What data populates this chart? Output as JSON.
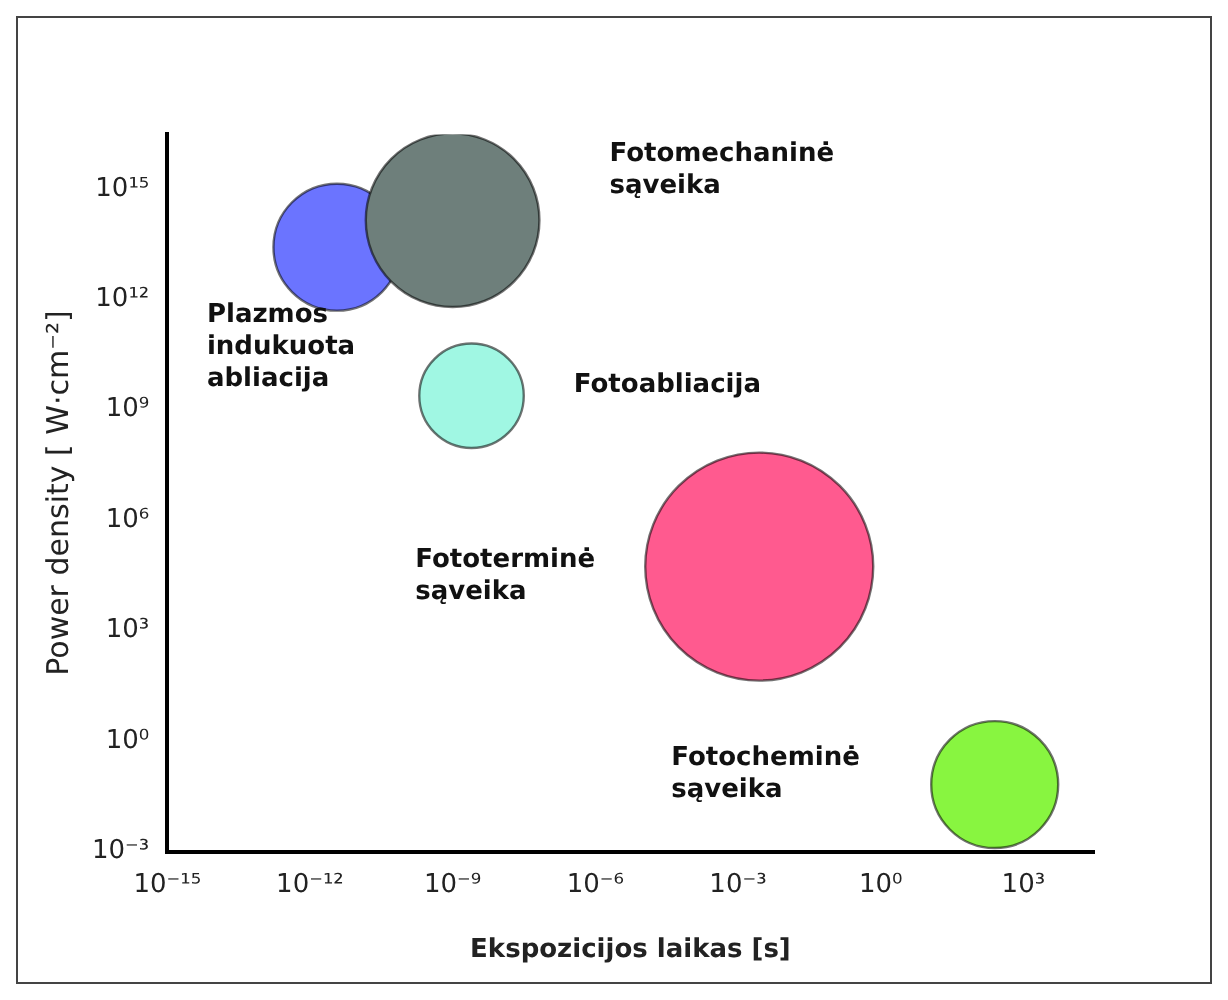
{
  "chart_data": {
    "type": "bubble",
    "xlabel": "Ekspozicijos laikas [s]",
    "ylabel": "Power density [ W·cm⁻²]",
    "log": "xy",
    "grid": false,
    "legend": false,
    "xlim": [
      1e-15,
      30000.0
    ],
    "ylim": [
      0.001,
      3e+16
    ],
    "xticks": [
      {
        "value": 1e-15,
        "label": "10⁻¹⁵"
      },
      {
        "value": 1e-12,
        "label": "10⁻¹²"
      },
      {
        "value": 1e-09,
        "label": "10⁻⁹"
      },
      {
        "value": 1e-06,
        "label": "10⁻⁶"
      },
      {
        "value": 0.001,
        "label": "10⁻³"
      },
      {
        "value": 1,
        "label": "10⁰"
      },
      {
        "value": 1000,
        "label": "10³"
      }
    ],
    "yticks": [
      {
        "value": 0.001,
        "label": "10⁻³"
      },
      {
        "value": 1,
        "label": "10⁰"
      },
      {
        "value": 1000,
        "label": "10³"
      },
      {
        "value": 1000000.0,
        "label": "10⁶"
      },
      {
        "value": 1000000000.0,
        "label": "10⁹"
      },
      {
        "value": 1000000000000.0,
        "label": "10¹²"
      },
      {
        "value": 1000000000000000.0,
        "label": "10¹⁵"
      }
    ],
    "series": [
      {
        "name": "Fotomechaninė sąveika",
        "color": "#6e7f7b",
        "x": [
          1e-09
        ],
        "values": [
          140000000000000.0
        ],
        "sizes": [
          0.58
        ]
      },
      {
        "name": "Plazmos indukuota abliacija",
        "color": "#6b74ff",
        "x": [
          3.7e-12
        ],
        "values": [
          26000000000000.0
        ],
        "sizes": [
          0.31
        ]
      },
      {
        "name": "Fotoabliacija",
        "color": "#a0f7e3",
        "x": [
          2.5e-09
        ],
        "values": [
          2400000000.0
        ],
        "sizes": [
          0.21
        ]
      },
      {
        "name": "Fototerminė sąveika",
        "color": "#ff5a8f",
        "x": [
          0.0028
        ],
        "values": [
          55000.0
        ],
        "sizes": [
          1
        ]
      },
      {
        "name": "Fotocheminė sąveika",
        "color": "#88f540",
        "x": [
          250
        ],
        "values": [
          0.066
        ],
        "sizes": [
          0.31
        ]
      }
    ]
  }
}
